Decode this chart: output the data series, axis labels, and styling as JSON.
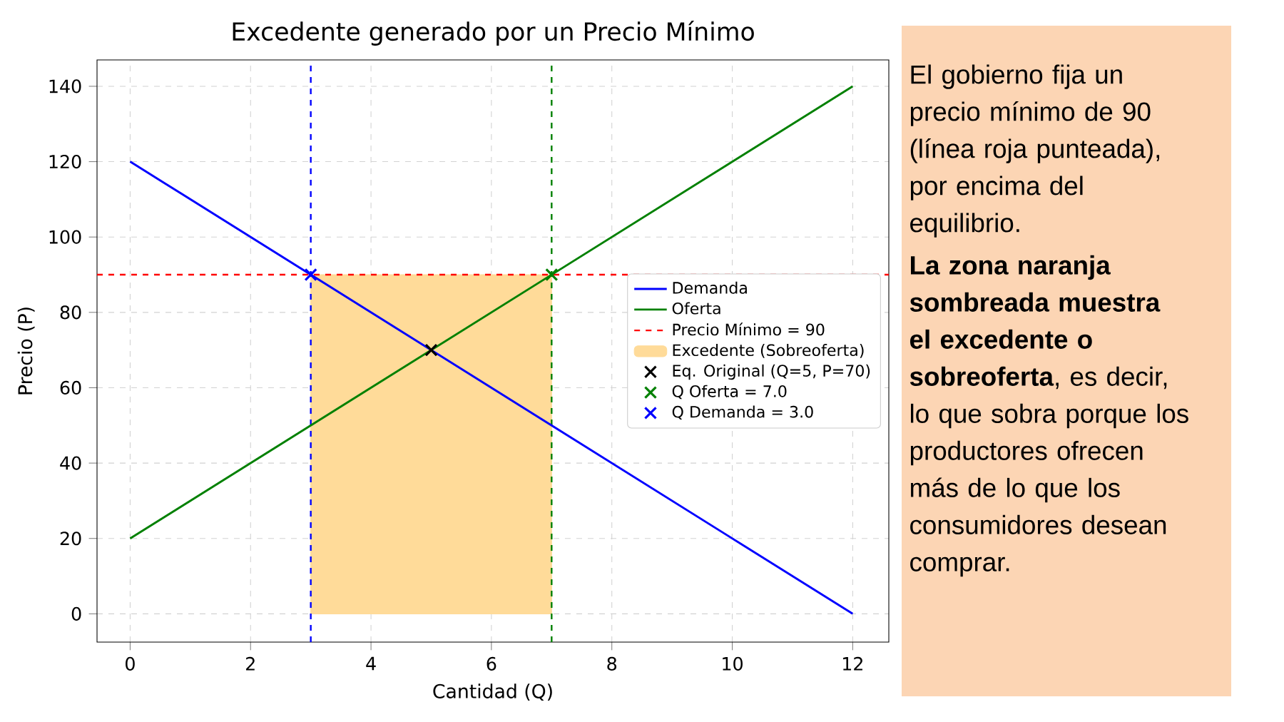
{
  "chart_data": {
    "type": "line",
    "title": "Excedente generado por un Precio Mínimo",
    "xlabel": "Cantidad (Q)",
    "ylabel": "Precio (P)",
    "xlim": [
      -0.55,
      12.6
    ],
    "xticks": [
      0,
      2,
      4,
      6,
      8,
      10,
      12
    ],
    "ylim": [
      -7.5,
      147
    ],
    "yticks": [
      0,
      20,
      40,
      60,
      80,
      100,
      120,
      140
    ],
    "grid": true,
    "legend": "right",
    "series": [
      {
        "name": "Demanda",
        "color": "#0000ff",
        "x": [
          0,
          12
        ],
        "values": [
          120,
          0
        ]
      },
      {
        "name": "Oferta",
        "color": "#008000",
        "x": [
          0,
          12
        ],
        "values": [
          20,
          140
        ]
      },
      {
        "name": "Excedente (Sobreoferta)",
        "type": "area",
        "color": "#ffdb99",
        "x": [
          3,
          7
        ],
        "values": [
          90,
          90
        ]
      },
      {
        "name": "Eq. Original (Q=5, P=70)",
        "type": "scatter",
        "marker": "cross",
        "color": "#000000",
        "x": [
          5
        ],
        "values": [
          70
        ]
      },
      {
        "name": "Q Oferta = 7.0",
        "type": "scatter",
        "marker": "cross",
        "color": "#008000",
        "x": [
          7
        ],
        "values": [
          90
        ]
      },
      {
        "name": "Q Demanda = 3.0",
        "type": "scatter",
        "marker": "cross",
        "color": "#0000ff",
        "x": [
          3
        ],
        "values": [
          90
        ]
      }
    ],
    "ref_lines": [
      {
        "axis": "y",
        "value": 90,
        "label": "Precio Mínimo = 90",
        "color": "#ff0000",
        "line_style": "dashed"
      },
      {
        "axis": "x",
        "value": 3,
        "color": "#0000ff",
        "line_style": "dashed"
      },
      {
        "axis": "x",
        "value": 7,
        "color": "#008000",
        "line_style": "dashed"
      }
    ],
    "annotations": [
      "El gobierno fija un precio mínimo de 90 (línea roja punteada), por encima del equilibrio.",
      "**La zona naranja sombreada muestra el excedente o sobreoferta**, es decir, lo que sobra porque los productores ofrecen más de lo que los consumidores desean comprar."
    ]
  }
}
